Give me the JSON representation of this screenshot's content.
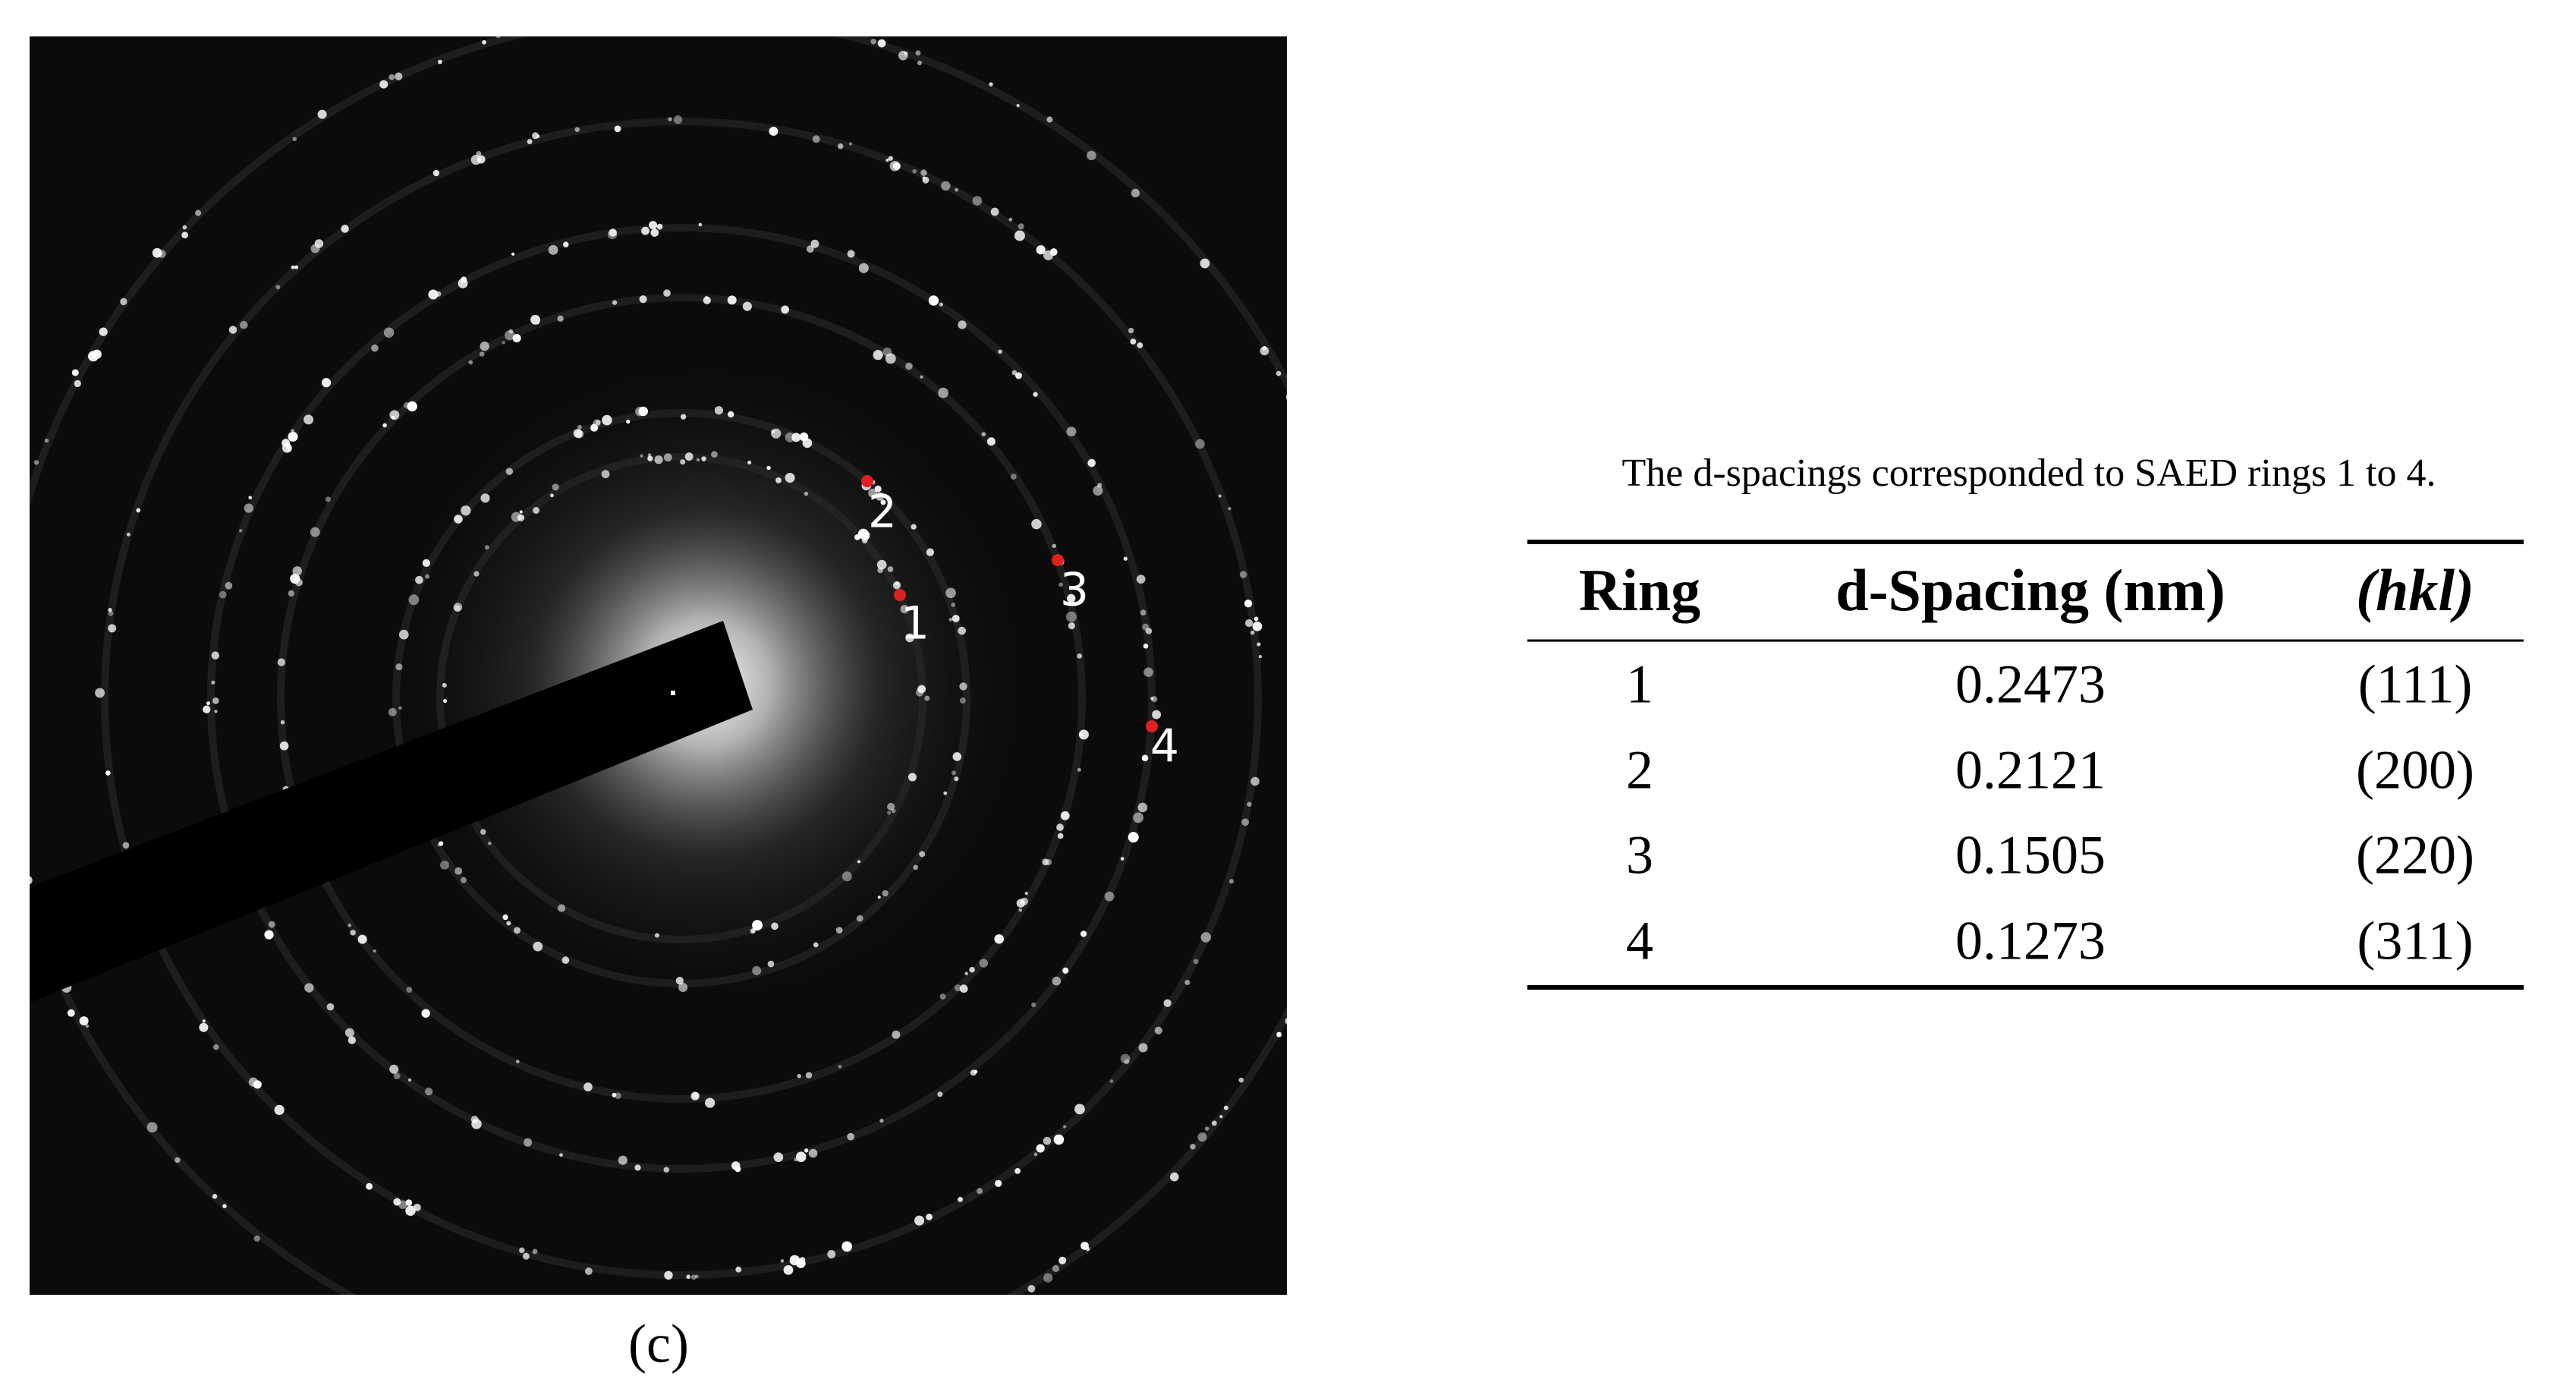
{
  "figure": {
    "panel_label": "(c)",
    "ring_labels": [
      "1",
      "2",
      "3",
      "4"
    ]
  },
  "table": {
    "caption": "The d-spacings corresponded to SAED rings 1 to 4.",
    "headers": [
      "Ring",
      "d-Spacing (nm)",
      "(hkl)"
    ],
    "rows": [
      [
        "1",
        "0.2473",
        "(111)"
      ],
      [
        "2",
        "0.2121",
        "(200)"
      ],
      [
        "3",
        "0.1505",
        "(220)"
      ],
      [
        "4",
        "0.1273",
        "(311)"
      ]
    ]
  }
}
